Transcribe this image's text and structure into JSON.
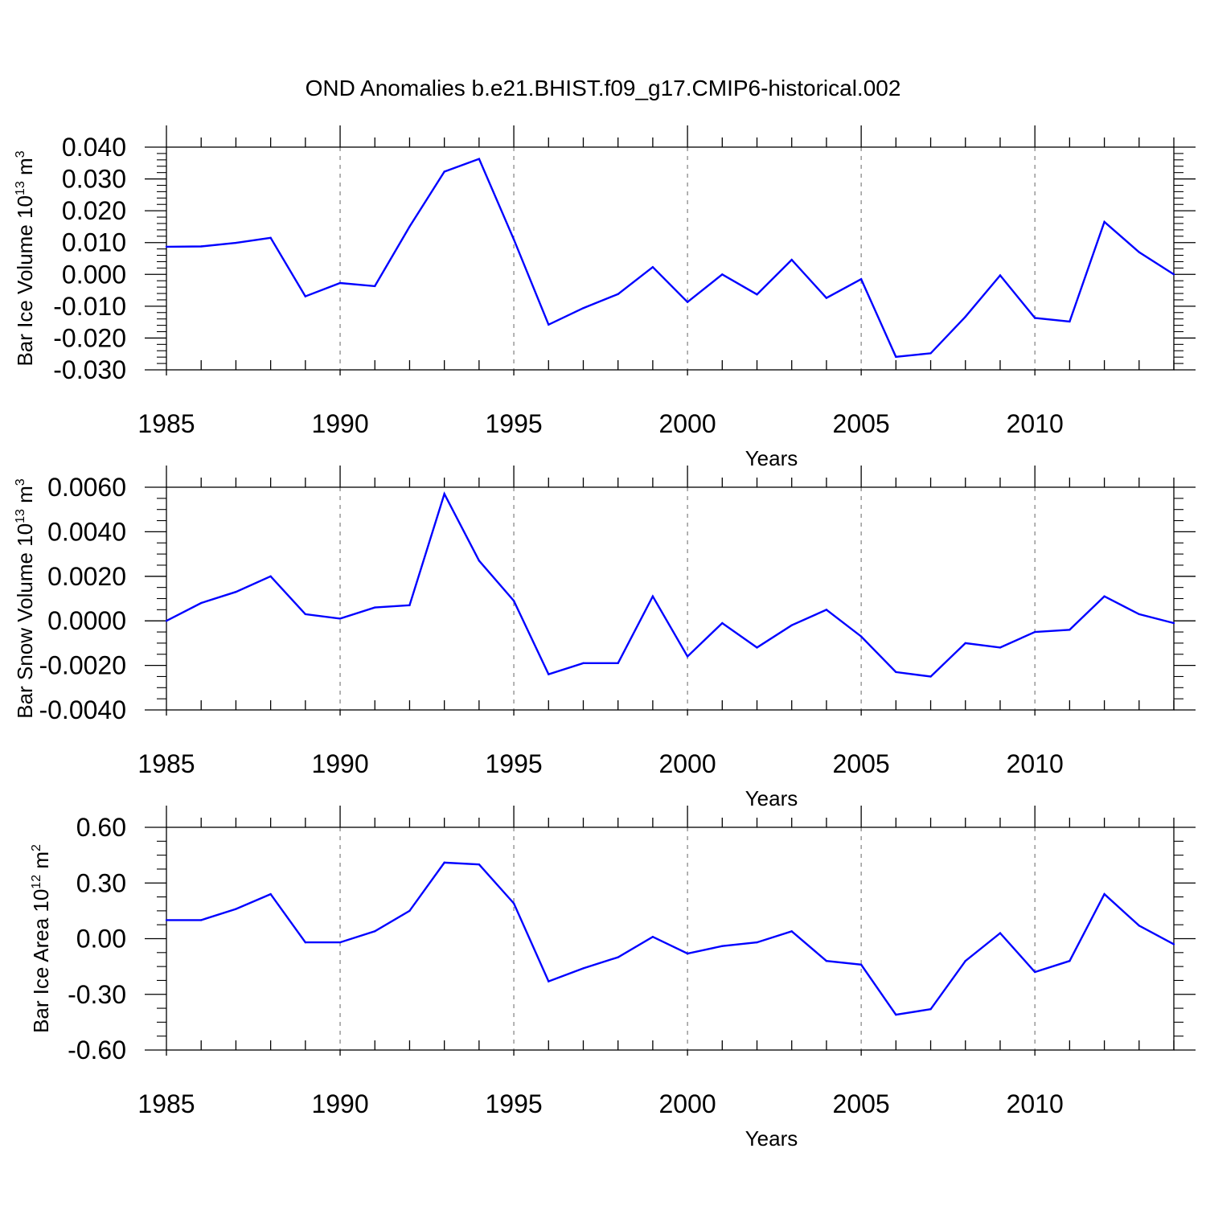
{
  "figure_title": "OND Anomalies b.e21.BHIST.f09_g17.CMIP6-historical.002",
  "colors": {
    "series": "#0000ff",
    "axis": "#000000",
    "grid": "#808080"
  },
  "chart_data": [
    {
      "type": "line",
      "title": "",
      "xlabel": "Years",
      "ylabel": {
        "prefix": "Bar Ice Volume 10",
        "exp": "13",
        "unit": " m",
        "unit_exp": "3"
      },
      "xlim": [
        1985,
        2014
      ],
      "ylim": [
        -0.03,
        0.04
      ],
      "x_ticks": [
        1985,
        1990,
        1995,
        2000,
        2005,
        2010
      ],
      "y_ticks": [
        "0.040",
        "0.030",
        "0.020",
        "0.010",
        "0.000",
        "-0.010",
        "-0.020",
        "-0.030"
      ],
      "y_tick_values": [
        0.04,
        0.03,
        0.02,
        0.01,
        0.0,
        -0.01,
        -0.02,
        -0.03
      ],
      "grid": "vertical dashed at major x ticks",
      "series": [
        {
          "x": [
            1985,
            1986,
            1987,
            1988,
            1989,
            1990,
            1991,
            1992,
            1993,
            1994,
            1995,
            1996,
            1997,
            1998,
            1999,
            2000,
            2001,
            2002,
            2003,
            2004,
            2005,
            2006,
            2007,
            2008,
            2009,
            2010,
            2011,
            2012,
            2013,
            2014
          ],
          "values": [
            0.0087,
            0.0088,
            0.0099,
            0.0115,
            -0.0069,
            -0.0027,
            -0.0037,
            0.015,
            0.0323,
            0.0363,
            0.011,
            -0.0158,
            -0.0106,
            -0.0062,
            0.0023,
            -0.0087,
            0.0,
            -0.0063,
            0.0046,
            -0.0074,
            -0.0015,
            -0.0259,
            -0.0248,
            -0.0133,
            -0.0003,
            -0.0137,
            -0.0148,
            0.0165,
            0.007,
            0.0
          ]
        }
      ]
    },
    {
      "type": "line",
      "title": "",
      "xlabel": "Years",
      "ylabel": {
        "prefix": "Bar Snow Volume 10",
        "exp": "13",
        "unit": " m",
        "unit_exp": "3"
      },
      "xlim": [
        1985,
        2014
      ],
      "ylim": [
        -0.004,
        0.006
      ],
      "x_ticks": [
        1985,
        1990,
        1995,
        2000,
        2005,
        2010
      ],
      "y_ticks": [
        "0.0060",
        "0.0040",
        "0.0020",
        "0.0000",
        "-0.0020",
        "-0.0040"
      ],
      "y_tick_values": [
        0.006,
        0.004,
        0.002,
        0.0,
        -0.002,
        -0.004
      ],
      "grid": "vertical dashed at major x ticks",
      "series": [
        {
          "x": [
            1985,
            1986,
            1987,
            1988,
            1989,
            1990,
            1991,
            1992,
            1993,
            1994,
            1995,
            1996,
            1997,
            1998,
            1999,
            2000,
            2001,
            2002,
            2003,
            2004,
            2005,
            2006,
            2007,
            2008,
            2009,
            2010,
            2011,
            2012,
            2013,
            2014
          ],
          "values": [
            0.0,
            0.0008,
            0.0013,
            0.002,
            0.0003,
            0.0001,
            0.0006,
            0.0007,
            0.0057,
            0.0027,
            0.0009,
            -0.0024,
            -0.0019,
            -0.0019,
            0.0011,
            -0.0016,
            -0.0001,
            -0.0012,
            -0.0002,
            0.0005,
            -0.0007,
            -0.0023,
            -0.0025,
            -0.001,
            -0.0012,
            -0.0005,
            -0.0004,
            0.0011,
            0.0003,
            -0.0001
          ]
        }
      ]
    },
    {
      "type": "line",
      "title": "",
      "xlabel": "Years",
      "ylabel": {
        "prefix": "Bar Ice Area 10",
        "exp": "12",
        "unit": " m",
        "unit_exp": "2"
      },
      "xlim": [
        1985,
        2014
      ],
      "ylim": [
        -0.6,
        0.6
      ],
      "x_ticks": [
        1985,
        1990,
        1995,
        2000,
        2005,
        2010
      ],
      "y_ticks": [
        "0.60",
        "0.30",
        "0.00",
        "-0.30",
        "-0.60"
      ],
      "y_tick_values": [
        0.6,
        0.3,
        0.0,
        -0.3,
        -0.6
      ],
      "grid": "vertical dashed at major x ticks",
      "series": [
        {
          "x": [
            1985,
            1986,
            1987,
            1988,
            1989,
            1990,
            1991,
            1992,
            1993,
            1994,
            1995,
            1996,
            1997,
            1998,
            1999,
            2000,
            2001,
            2002,
            2003,
            2004,
            2005,
            2006,
            2007,
            2008,
            2009,
            2010,
            2011,
            2012,
            2013,
            2014
          ],
          "values": [
            0.1,
            0.1,
            0.16,
            0.24,
            -0.02,
            -0.02,
            0.04,
            0.15,
            0.41,
            0.4,
            0.19,
            -0.23,
            -0.16,
            -0.1,
            0.01,
            -0.08,
            -0.04,
            -0.02,
            0.04,
            -0.12,
            -0.14,
            -0.41,
            -0.38,
            -0.12,
            0.03,
            -0.18,
            -0.12,
            0.24,
            0.07,
            -0.03
          ]
        }
      ]
    }
  ]
}
